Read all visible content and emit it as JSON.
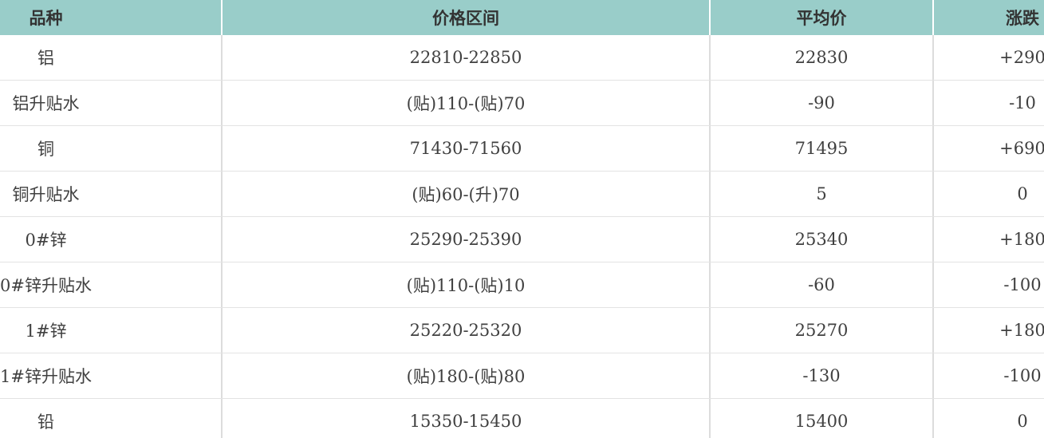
{
  "chart_data": {
    "type": "table",
    "title": "",
    "columns": [
      "品种",
      "价格区间",
      "平均价",
      "涨跌"
    ],
    "rows": [
      [
        "铝",
        "22810-22850",
        "22830",
        "+290"
      ],
      [
        "铝升贴水",
        "(贴)110-(贴)70",
        "-90",
        "-10"
      ],
      [
        "铜",
        "71430-71560",
        "71495",
        "+690"
      ],
      [
        "铜升贴水",
        "(贴)60-(升)70",
        "5",
        "0"
      ],
      [
        "0#锌",
        "25290-25390",
        "25340",
        "+180"
      ],
      [
        "0#锌升贴水",
        "(贴)110-(贴)10",
        "-60",
        "-100"
      ],
      [
        "1#锌",
        "25220-25320",
        "25270",
        "+180"
      ],
      [
        "1#锌升贴水",
        "(贴)180-(贴)80",
        "-130",
        "-100"
      ],
      [
        "铅",
        "15350-15450",
        "15400",
        "0"
      ]
    ],
    "layout": {
      "legend": "none",
      "grid": "horizontal-and-vertical-lines",
      "header_style": "teal-filled",
      "note": "rightmost column clipped by viewport edge"
    }
  },
  "colors": {
    "header_bg": "#99cdc9",
    "header_divider": "#ffffff",
    "grid_line": "#dcdcdc",
    "row_line": "#e3e3e3",
    "header_text": "#333333",
    "body_text": "#404040",
    "background": "#ffffff"
  }
}
